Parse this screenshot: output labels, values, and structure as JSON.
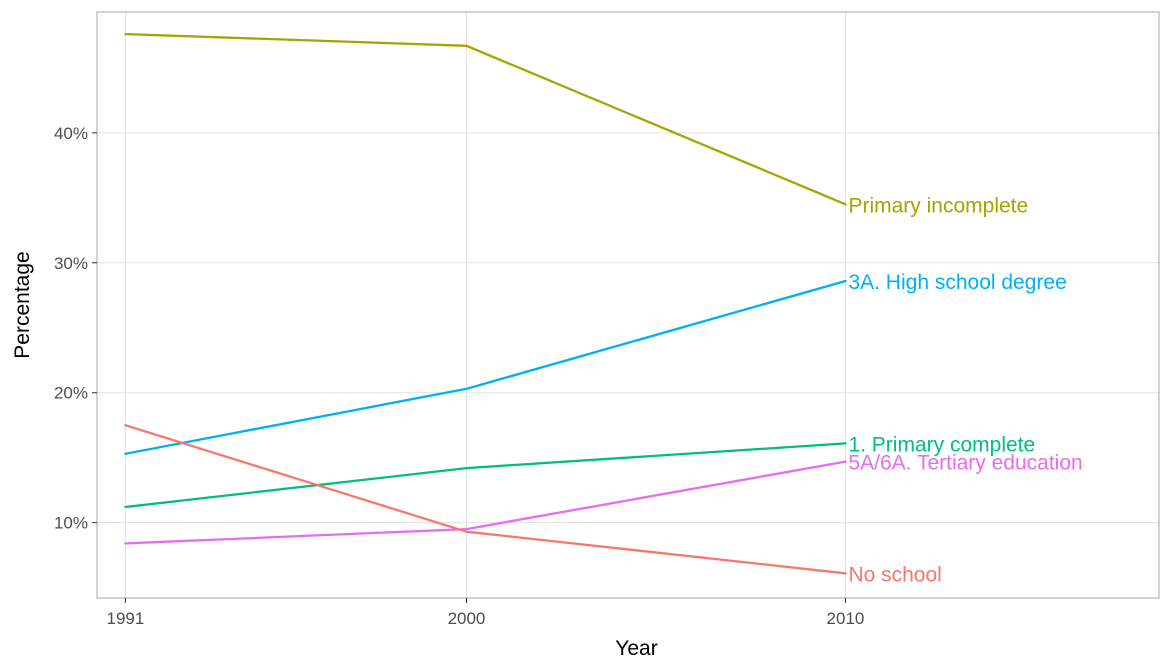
{
  "chart_data": {
    "type": "line",
    "title": "",
    "xlabel": "Year",
    "ylabel": "Percentage",
    "x": [
      1991,
      2000,
      2010
    ],
    "x_tick_labels": [
      "1991",
      "2000",
      "2010"
    ],
    "xlim": [
      1990.25,
      2018.3
    ],
    "y_ticks": [
      10,
      20,
      30,
      40
    ],
    "y_tick_labels": [
      "10%",
      "20%",
      "30%",
      "40%"
    ],
    "ylim": [
      4.2,
      49.3
    ],
    "grid": true,
    "legend": "direct labels at line ends",
    "series": [
      {
        "name": "Primary incomplete",
        "color": "#a3a500",
        "values": [
          47.6,
          46.7,
          34.5
        ]
      },
      {
        "name": "3A. High school degree",
        "color": "#00b0f6",
        "values": [
          15.3,
          20.3,
          28.6
        ]
      },
      {
        "name": "1. Primary complete",
        "color": "#00bf7d",
        "values": [
          11.2,
          14.2,
          16.1
        ]
      },
      {
        "name": "5A/6A. Tertiary education",
        "color": "#e76bf3",
        "values": [
          8.4,
          9.5,
          14.7
        ]
      },
      {
        "name": "No school",
        "color": "#f8766d",
        "values": [
          17.5,
          9.3,
          6.1
        ]
      }
    ]
  }
}
